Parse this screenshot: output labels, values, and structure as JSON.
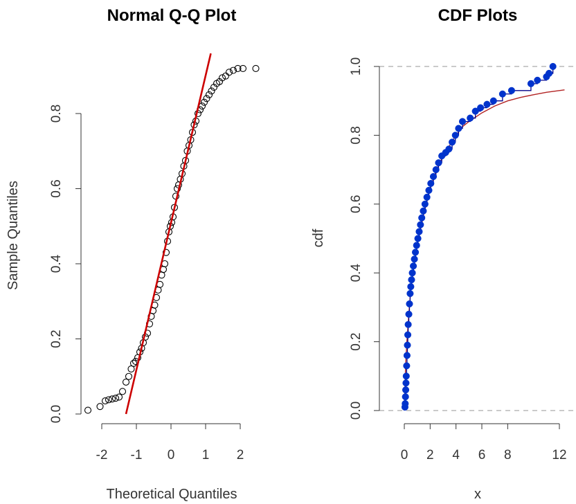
{
  "chart_data": [
    {
      "type": "scatter",
      "title": "Normal Q-Q Plot",
      "xlabel": "Theoretical Quantiles",
      "ylabel": "Sample Quantiles",
      "xlim": [
        -2.4,
        2.4
      ],
      "ylim": [
        0.0,
        0.95
      ],
      "xticks": [
        "-2",
        "-1",
        "0",
        "1",
        "2"
      ],
      "xtick_values": [
        -2,
        -1,
        0,
        1,
        2
      ],
      "yticks": [
        "0.0",
        "0.2",
        "0.4",
        "0.6",
        "0.8"
      ],
      "ytick_values": [
        0.0,
        0.2,
        0.4,
        0.6,
        0.8
      ],
      "points": [
        [
          -2.4,
          0.01
        ],
        [
          -2.05,
          0.02
        ],
        [
          -1.9,
          0.035
        ],
        [
          -1.8,
          0.038
        ],
        [
          -1.7,
          0.04
        ],
        [
          -1.6,
          0.042
        ],
        [
          -1.5,
          0.045
        ],
        [
          -1.4,
          0.06
        ],
        [
          -1.3,
          0.085
        ],
        [
          -1.22,
          0.1
        ],
        [
          -1.15,
          0.12
        ],
        [
          -1.08,
          0.135
        ],
        [
          -1.02,
          0.14
        ],
        [
          -0.96,
          0.15
        ],
        [
          -0.9,
          0.165
        ],
        [
          -0.85,
          0.175
        ],
        [
          -0.8,
          0.19
        ],
        [
          -0.74,
          0.205
        ],
        [
          -0.68,
          0.215
        ],
        [
          -0.62,
          0.24
        ],
        [
          -0.57,
          0.26
        ],
        [
          -0.52,
          0.275
        ],
        [
          -0.47,
          0.29
        ],
        [
          -0.42,
          0.31
        ],
        [
          -0.37,
          0.33
        ],
        [
          -0.32,
          0.345
        ],
        [
          -0.27,
          0.37
        ],
        [
          -0.22,
          0.385
        ],
        [
          -0.18,
          0.4
        ],
        [
          -0.14,
          0.43
        ],
        [
          -0.1,
          0.46
        ],
        [
          -0.06,
          0.485
        ],
        [
          -0.02,
          0.5
        ],
        [
          0.02,
          0.51
        ],
        [
          0.06,
          0.525
        ],
        [
          0.1,
          0.55
        ],
        [
          0.14,
          0.58
        ],
        [
          0.18,
          0.6
        ],
        [
          0.22,
          0.61
        ],
        [
          0.27,
          0.625
        ],
        [
          0.32,
          0.64
        ],
        [
          0.37,
          0.66
        ],
        [
          0.42,
          0.675
        ],
        [
          0.47,
          0.7
        ],
        [
          0.52,
          0.715
        ],
        [
          0.57,
          0.73
        ],
        [
          0.62,
          0.75
        ],
        [
          0.67,
          0.77
        ],
        [
          0.72,
          0.78
        ],
        [
          0.78,
          0.8
        ],
        [
          0.84,
          0.81
        ],
        [
          0.9,
          0.82
        ],
        [
          0.96,
          0.83
        ],
        [
          1.03,
          0.84
        ],
        [
          1.1,
          0.85
        ],
        [
          1.17,
          0.86
        ],
        [
          1.24,
          0.87
        ],
        [
          1.32,
          0.88
        ],
        [
          1.4,
          0.885
        ],
        [
          1.48,
          0.895
        ],
        [
          1.58,
          0.9
        ],
        [
          1.68,
          0.91
        ],
        [
          1.8,
          0.915
        ],
        [
          1.93,
          0.92
        ],
        [
          2.08,
          0.92
        ],
        [
          2.45,
          0.92
        ]
      ],
      "point_color": "#000000",
      "reference_line": {
        "from": [
          -1.3,
          0.0
        ],
        "to": [
          1.15,
          0.96
        ],
        "color": "#cc0000"
      }
    },
    {
      "type": "line",
      "title": "CDF Plots",
      "xlabel": "x",
      "ylabel": "cdf",
      "xlim": [
        -0.6,
        12.8
      ],
      "ylim": [
        0.0,
        1.0
      ],
      "xticks": [
        "0",
        "2",
        "4",
        "6",
        "8",
        "12"
      ],
      "xtick_values": [
        0,
        2,
        4,
        6,
        8,
        12
      ],
      "yticks": [
        "0.0",
        "0.2",
        "0.4",
        "0.6",
        "0.8",
        "1.0"
      ],
      "ytick_values": [
        0.0,
        0.2,
        0.4,
        0.6,
        0.8,
        1.0
      ],
      "reference_lines_y": [
        0.0,
        1.0
      ],
      "reference_line_color": "#aaaaaa",
      "empirical_points": [
        [
          0.05,
          0.01
        ],
        [
          0.07,
          0.02
        ],
        [
          0.09,
          0.04
        ],
        [
          0.11,
          0.06
        ],
        [
          0.13,
          0.08
        ],
        [
          0.15,
          0.1
        ],
        [
          0.18,
          0.13
        ],
        [
          0.21,
          0.16
        ],
        [
          0.24,
          0.19
        ],
        [
          0.27,
          0.22
        ],
        [
          0.3,
          0.25
        ],
        [
          0.35,
          0.28
        ],
        [
          0.4,
          0.31
        ],
        [
          0.45,
          0.34
        ],
        [
          0.5,
          0.36
        ],
        [
          0.56,
          0.38
        ],
        [
          0.62,
          0.4
        ],
        [
          0.7,
          0.42
        ],
        [
          0.78,
          0.44
        ],
        [
          0.86,
          0.46
        ],
        [
          0.95,
          0.48
        ],
        [
          1.05,
          0.5
        ],
        [
          1.15,
          0.52
        ],
        [
          1.25,
          0.54
        ],
        [
          1.35,
          0.56
        ],
        [
          1.47,
          0.58
        ],
        [
          1.6,
          0.6
        ],
        [
          1.75,
          0.62
        ],
        [
          1.9,
          0.64
        ],
        [
          2.05,
          0.66
        ],
        [
          2.25,
          0.68
        ],
        [
          2.45,
          0.7
        ],
        [
          2.65,
          0.72
        ],
        [
          2.9,
          0.74
        ],
        [
          3.2,
          0.75
        ],
        [
          3.45,
          0.76
        ],
        [
          3.7,
          0.78
        ],
        [
          3.95,
          0.8
        ],
        [
          4.2,
          0.82
        ],
        [
          4.5,
          0.84
        ],
        [
          5.1,
          0.85
        ],
        [
          5.5,
          0.87
        ],
        [
          5.9,
          0.88
        ],
        [
          6.4,
          0.89
        ],
        [
          6.9,
          0.9
        ],
        [
          7.6,
          0.92
        ],
        [
          8.3,
          0.93
        ],
        [
          9.8,
          0.95
        ],
        [
          10.3,
          0.96
        ],
        [
          11.0,
          0.97
        ],
        [
          11.2,
          0.98
        ],
        [
          11.5,
          1.0
        ]
      ],
      "empirical_color": "#0033cc",
      "step_color": "#000088",
      "theoretical_curve": [
        [
          0.0,
          0.0
        ],
        [
          0.1,
          0.13
        ],
        [
          0.2,
          0.2
        ],
        [
          0.35,
          0.28
        ],
        [
          0.5,
          0.35
        ],
        [
          0.75,
          0.42
        ],
        [
          1.0,
          0.48
        ],
        [
          1.5,
          0.57
        ],
        [
          2.0,
          0.645
        ],
        [
          2.5,
          0.7
        ],
        [
          3.0,
          0.74
        ],
        [
          3.5,
          0.77
        ],
        [
          4.0,
          0.8
        ],
        [
          4.5,
          0.825
        ],
        [
          5.0,
          0.84
        ],
        [
          6.0,
          0.865
        ],
        [
          7.0,
          0.885
        ],
        [
          8.0,
          0.9
        ],
        [
          9.0,
          0.91
        ],
        [
          10.0,
          0.918
        ],
        [
          11.0,
          0.925
        ],
        [
          12.4,
          0.932
        ]
      ],
      "theoretical_color": "#b22222"
    }
  ]
}
